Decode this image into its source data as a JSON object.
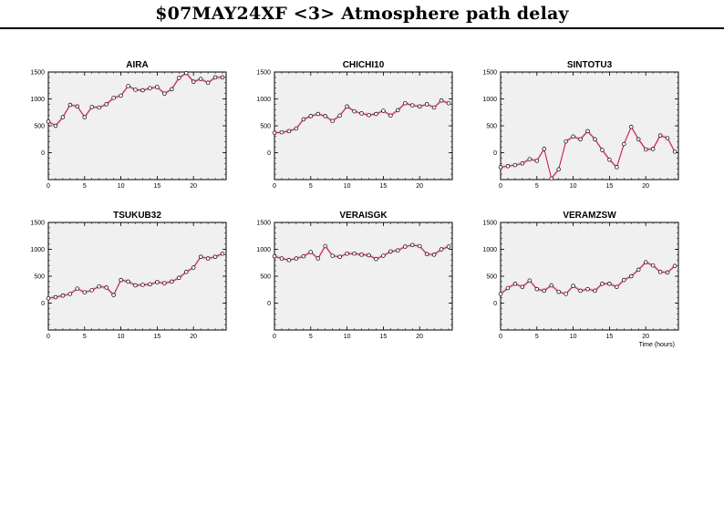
{
  "header": {
    "title": "$07MAY24XF <3>  Atmosphere path delay"
  },
  "colors": {
    "line": "#c1123c",
    "plot_bg": "#f0f0f0",
    "band": "#f2b8c6"
  },
  "chart_data": [
    {
      "type": "line",
      "title": "AIRA",
      "xlabel": "",
      "ylabel": "",
      "xlim": [
        0,
        24.5
      ],
      "ylim": [
        -500,
        1500
      ],
      "xticks": [
        0,
        5,
        10,
        15,
        20
      ],
      "yticks": [
        0,
        500,
        1000,
        1500
      ],
      "x": [
        0,
        1,
        2,
        3,
        4,
        5,
        6,
        7,
        8,
        9,
        10,
        11,
        12,
        13,
        14,
        15,
        16,
        17,
        18,
        19,
        20,
        21,
        22,
        23,
        24
      ],
      "y": [
        580,
        500,
        660,
        890,
        860,
        660,
        850,
        840,
        900,
        1020,
        1060,
        1240,
        1170,
        1160,
        1200,
        1220,
        1100,
        1180,
        1390,
        1480,
        1320,
        1370,
        1300,
        1400,
        1400
      ]
    },
    {
      "type": "line",
      "title": "CHICHI10",
      "xlabel": "",
      "ylabel": "",
      "xlim": [
        0,
        24.5
      ],
      "ylim": [
        -500,
        1500
      ],
      "xticks": [
        0,
        5,
        10,
        15,
        20
      ],
      "yticks": [
        0,
        500,
        1000,
        1500
      ],
      "x": [
        0,
        1,
        2,
        3,
        4,
        5,
        6,
        7,
        8,
        9,
        10,
        11,
        12,
        13,
        14,
        15,
        16,
        17,
        18,
        19,
        20,
        21,
        22,
        23,
        24
      ],
      "y": [
        370,
        380,
        400,
        450,
        620,
        680,
        720,
        680,
        590,
        690,
        860,
        770,
        730,
        700,
        720,
        780,
        690,
        790,
        920,
        880,
        860,
        900,
        840,
        970,
        920
      ]
    },
    {
      "type": "line",
      "title": "SINTOTU3",
      "xlabel": "",
      "ylabel": "",
      "xlim": [
        0,
        24.5
      ],
      "ylim": [
        -500,
        1500
      ],
      "xticks": [
        0,
        5,
        10,
        15,
        20
      ],
      "yticks": [
        0,
        500,
        1000,
        1500
      ],
      "x": [
        0,
        1,
        2,
        3,
        4,
        5,
        6,
        7,
        8,
        9,
        10,
        11,
        12,
        13,
        14,
        15,
        16,
        17,
        18,
        19,
        20,
        21,
        22,
        23,
        24
      ],
      "y": [
        -270,
        -250,
        -230,
        -200,
        -120,
        -150,
        70,
        -480,
        -310,
        210,
        300,
        250,
        400,
        250,
        50,
        -130,
        -270,
        160,
        480,
        250,
        60,
        70,
        320,
        270,
        20
      ]
    },
    {
      "type": "line",
      "title": "TSUKUB32",
      "xlabel": "",
      "ylabel": "",
      "xlim": [
        0,
        24.5
      ],
      "ylim": [
        -500,
        1500
      ],
      "xticks": [
        0,
        5,
        10,
        15,
        20
      ],
      "yticks": [
        0,
        500,
        1000,
        1500
      ],
      "x": [
        0,
        1,
        2,
        3,
        4,
        5,
        6,
        7,
        8,
        9,
        10,
        11,
        12,
        13,
        14,
        15,
        16,
        17,
        18,
        19,
        20,
        21,
        22,
        23,
        24
      ],
      "y": [
        90,
        110,
        140,
        170,
        270,
        200,
        240,
        310,
        290,
        150,
        430,
        400,
        330,
        340,
        350,
        390,
        370,
        400,
        470,
        580,
        660,
        860,
        830,
        860,
        920
      ]
    },
    {
      "type": "line",
      "title": "VERAISGK",
      "xlabel": "",
      "ylabel": "",
      "xlim": [
        0,
        24.5
      ],
      "ylim": [
        -500,
        1500
      ],
      "xticks": [
        0,
        5,
        10,
        15,
        20
      ],
      "yticks": [
        0,
        500,
        1000,
        1500
      ],
      "x": [
        0,
        1,
        2,
        3,
        4,
        5,
        6,
        7,
        8,
        9,
        10,
        11,
        12,
        13,
        14,
        15,
        16,
        17,
        18,
        19,
        20,
        21,
        22,
        23,
        24
      ],
      "y": [
        870,
        830,
        800,
        830,
        870,
        950,
        830,
        1060,
        880,
        860,
        920,
        920,
        900,
        890,
        820,
        880,
        960,
        980,
        1050,
        1080,
        1060,
        910,
        900,
        1000,
        1050
      ]
    },
    {
      "type": "line",
      "title": "VERAMZSW",
      "xlabel": "Time (hours)",
      "ylabel": "",
      "xlim": [
        0,
        24.5
      ],
      "ylim": [
        -500,
        1500
      ],
      "xticks": [
        0,
        5,
        10,
        15,
        20
      ],
      "yticks": [
        0,
        500,
        1000,
        1500
      ],
      "x": [
        0,
        1,
        2,
        3,
        4,
        5,
        6,
        7,
        8,
        9,
        10,
        11,
        12,
        13,
        14,
        15,
        16,
        17,
        18,
        19,
        20,
        21,
        22,
        23,
        24
      ],
      "y": [
        170,
        280,
        360,
        300,
        420,
        260,
        230,
        330,
        210,
        170,
        320,
        230,
        260,
        230,
        360,
        360,
        300,
        430,
        500,
        620,
        760,
        700,
        580,
        570,
        690
      ]
    }
  ]
}
